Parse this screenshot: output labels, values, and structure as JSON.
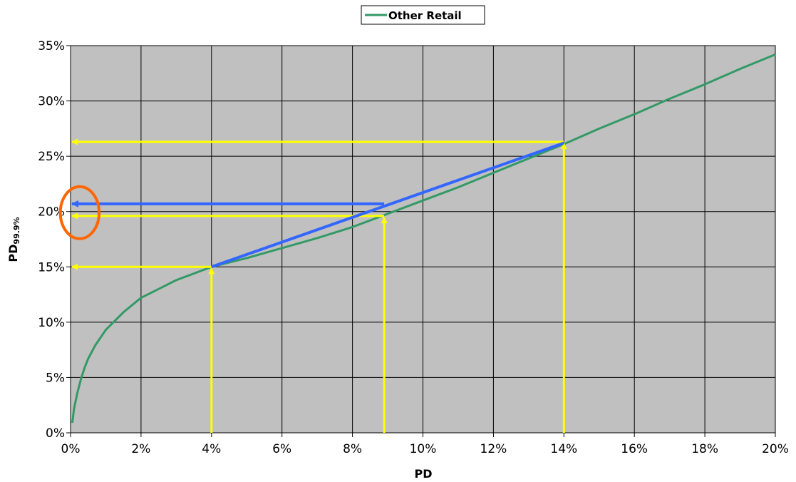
{
  "chart_data": {
    "type": "line",
    "title": "",
    "xlabel": "PD",
    "ylabel_main": "PD",
    "ylabel_sub": "99.9%",
    "xlim": [
      0,
      20
    ],
    "ylim": [
      0,
      35
    ],
    "x_ticks": [
      "0%",
      "2%",
      "4%",
      "6%",
      "8%",
      "10%",
      "12%",
      "14%",
      "16%",
      "18%",
      "20%"
    ],
    "y_ticks": [
      "0%",
      "5%",
      "10%",
      "15%",
      "20%",
      "25%",
      "30%",
      "35%"
    ],
    "grid": true,
    "plot_background": "#c0c0c0",
    "legend_position": "top-center",
    "series": [
      {
        "name": "Other Retail",
        "color": "#339966",
        "points": [
          [
            0.05,
            0.9
          ],
          [
            0.1,
            2.2
          ],
          [
            0.2,
            3.7
          ],
          [
            0.3,
            4.9
          ],
          [
            0.4,
            5.9
          ],
          [
            0.5,
            6.7
          ],
          [
            0.7,
            7.9
          ],
          [
            1.0,
            9.3
          ],
          [
            1.5,
            10.9
          ],
          [
            2.0,
            12.2
          ],
          [
            2.5,
            13.0
          ],
          [
            3.0,
            13.8
          ],
          [
            3.5,
            14.4
          ],
          [
            4.0,
            15.0
          ],
          [
            5.0,
            15.8
          ],
          [
            6.0,
            16.7
          ],
          [
            7.0,
            17.6
          ],
          [
            8.0,
            18.6
          ],
          [
            9.0,
            19.8
          ],
          [
            10.0,
            21.0
          ],
          [
            11.0,
            22.2
          ],
          [
            12.0,
            23.5
          ],
          [
            13.0,
            24.8
          ],
          [
            14.0,
            26.1
          ],
          [
            15.0,
            27.5
          ],
          [
            16.0,
            28.8
          ],
          [
            17.0,
            30.2
          ],
          [
            18.0,
            31.5
          ],
          [
            19.0,
            32.9
          ],
          [
            20.0,
            34.2
          ]
        ]
      }
    ],
    "annotations": {
      "interpolation_line": {
        "from": [
          4,
          15.0
        ],
        "to": [
          14,
          26.2
        ],
        "color": "#3366ff"
      },
      "blue_readout": {
        "x": 8.9,
        "y": 20.7,
        "color": "#3366ff"
      },
      "yellow_readouts": [
        {
          "x": 4,
          "y": 15.0
        },
        {
          "x": 8.9,
          "y": 19.6
        },
        {
          "x": 14,
          "y": 26.3
        }
      ],
      "yellow_color": "#ffff00",
      "highlight_ellipse": {
        "cx": 0.26,
        "cy": 19.9,
        "rx": 0.55,
        "ry": 2.35,
        "color": "#ff6600"
      }
    }
  }
}
